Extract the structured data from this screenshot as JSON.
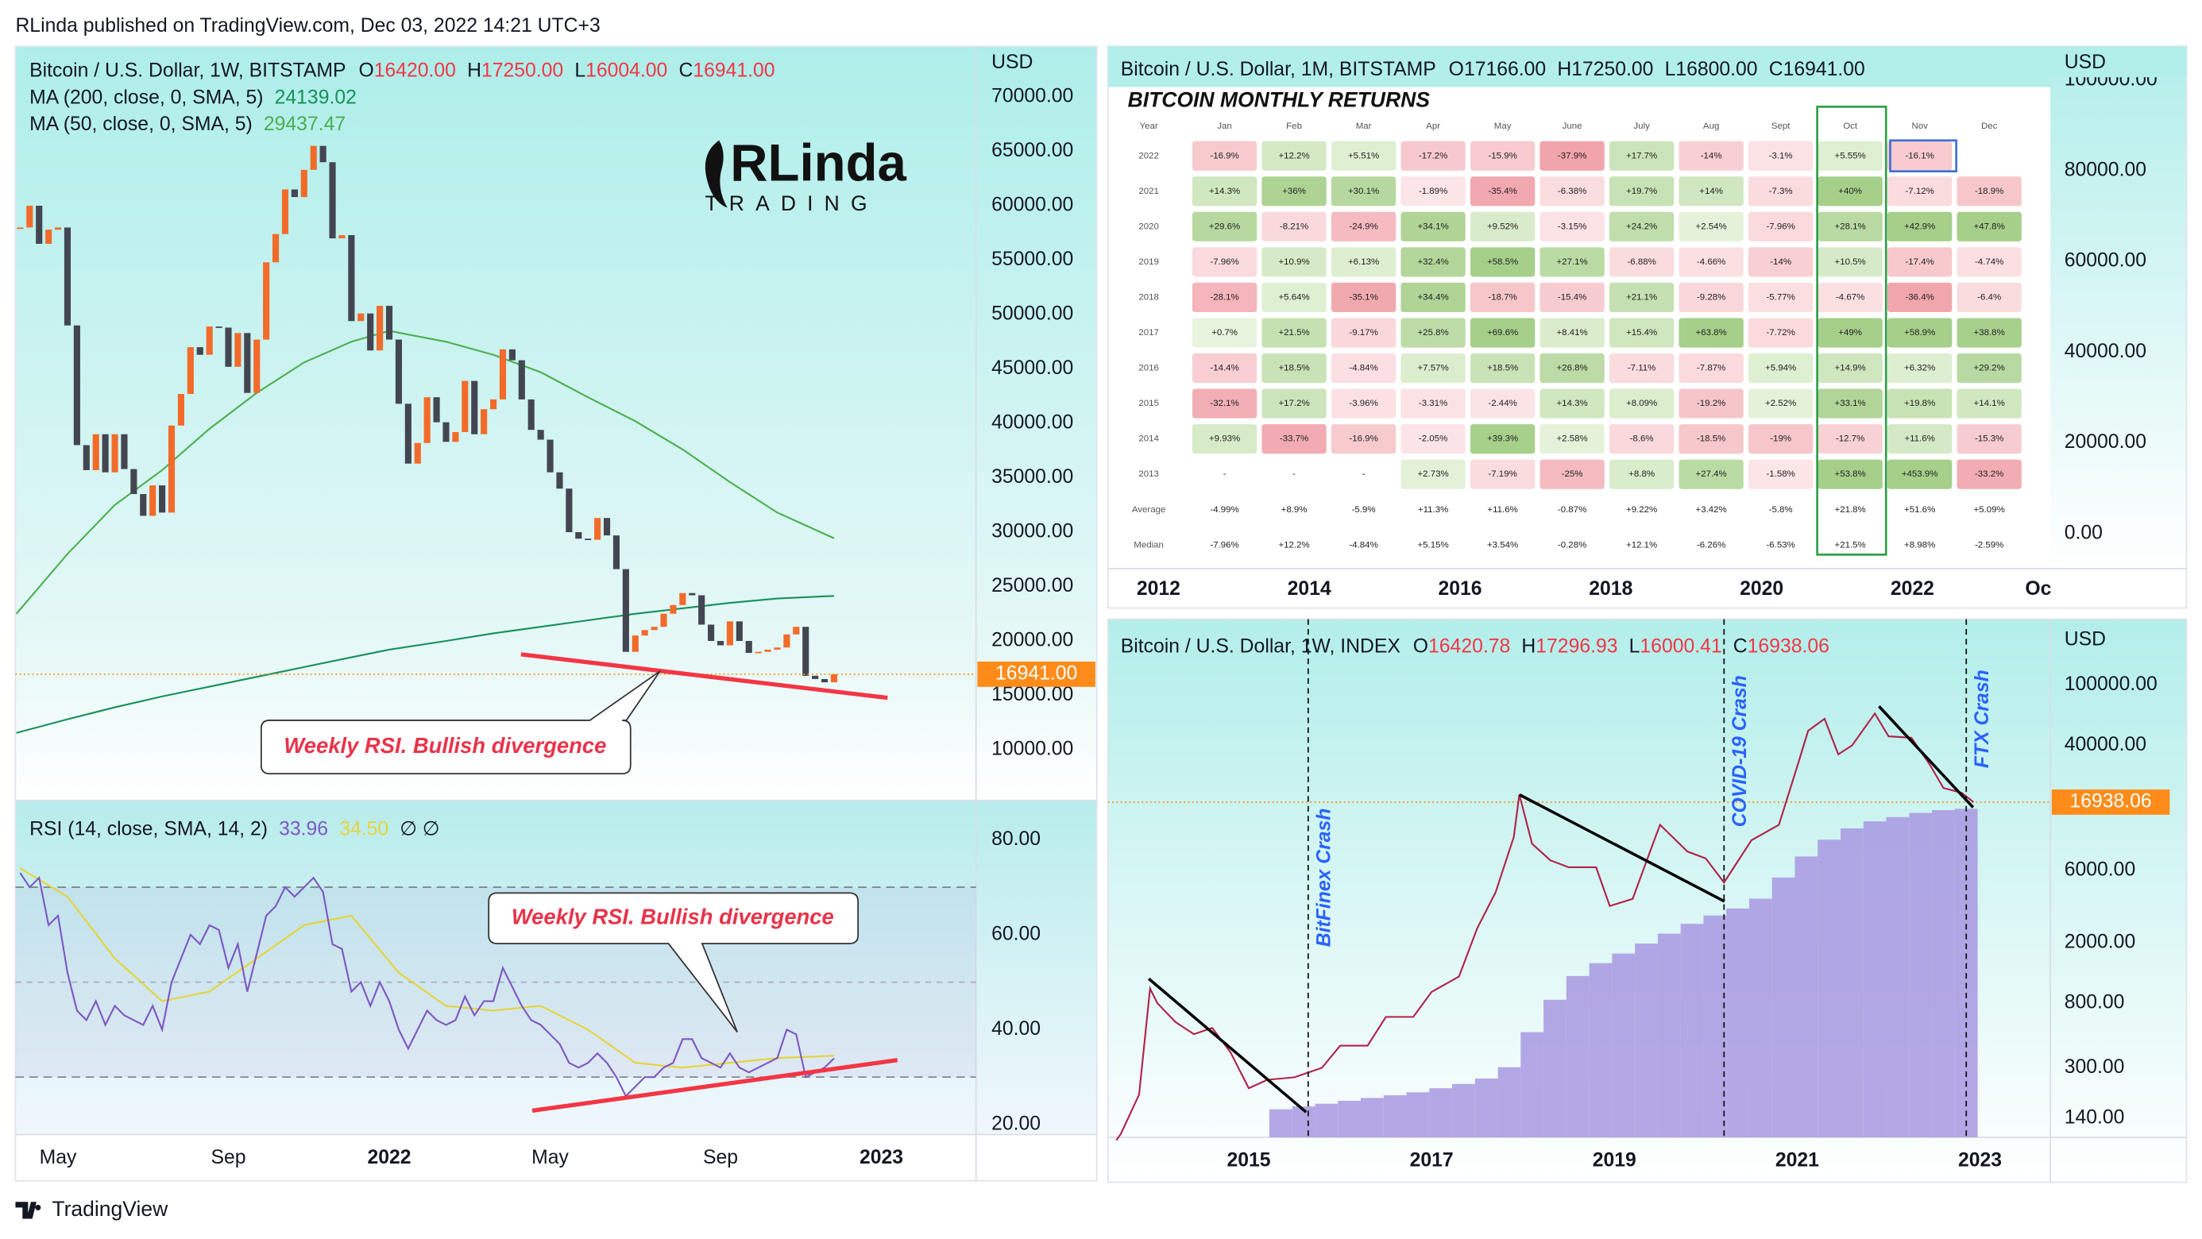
{
  "header": {
    "publisher": "RLinda published on TradingView.com, Dec 03, 2022 14:21 UTC+3"
  },
  "logo": {
    "name": "RLinda",
    "tagline": "TRADING"
  },
  "footer": {
    "brand": "TradingView"
  },
  "chart_data": [
    {
      "type": "candlestick",
      "title": "Bitcoin / U.S. Dollar, 1W, BITSTAMP",
      "ohlc": [
        {
          "label": "O",
          "value": "16420.00"
        },
        {
          "label": "H",
          "value": "17250.00"
        },
        {
          "label": "L",
          "value": "16004.00"
        },
        {
          "label": "C",
          "value": "16941.00"
        }
      ],
      "axis_unit": "USD",
      "up_color": "#f26b2a",
      "down_color": "#434651",
      "xlim": [
        -0.5,
        101
      ],
      "ylim": [
        5350,
        74650
      ],
      "xticks": [
        {
          "value": 4,
          "label": "May"
        },
        {
          "value": 22,
          "label": "Sep"
        },
        {
          "value": 39,
          "label": "2022"
        },
        {
          "value": 56,
          "label": "May"
        },
        {
          "value": 74,
          "label": "Sep"
        },
        {
          "value": 91,
          "label": "2023"
        }
      ],
      "yticks": [
        {
          "value": 10000,
          "label": "10000.00"
        },
        {
          "value": 15000,
          "label": "15000.00"
        },
        {
          "value": 20000,
          "label": "20000.00"
        },
        {
          "value": 25000,
          "label": "25000.00"
        },
        {
          "value": 30000,
          "label": "30000.00"
        },
        {
          "value": 35000,
          "label": "35000.00"
        },
        {
          "value": 40000,
          "label": "40000.00"
        },
        {
          "value": 45000,
          "label": "45000.00"
        },
        {
          "value": 50000,
          "label": "50000.00"
        },
        {
          "value": 55000,
          "label": "55000.00"
        },
        {
          "value": 60000,
          "label": "60000.00"
        },
        {
          "value": 65000,
          "label": "65000.00"
        },
        {
          "value": 70000,
          "label": "70000.00"
        }
      ],
      "x": [
        0,
        1,
        2,
        3,
        4,
        5,
        6,
        7,
        8,
        9,
        10,
        11,
        12,
        13,
        14,
        15,
        16,
        17,
        18,
        19,
        20,
        21,
        22,
        23,
        24,
        25,
        26,
        27,
        28,
        29,
        30,
        31,
        32,
        33,
        34,
        35,
        36,
        37,
        38,
        39,
        40,
        41,
        42,
        43,
        44,
        45,
        46,
        47,
        48,
        49,
        50,
        51,
        52,
        53,
        54,
        55,
        56,
        57,
        58,
        59,
        60,
        61,
        62,
        63,
        64,
        65,
        66,
        67,
        68,
        69,
        70,
        71,
        72,
        73,
        74,
        75,
        76,
        77,
        78,
        79,
        80,
        81,
        82,
        83,
        84,
        85,
        86
      ],
      "candles": {
        "values": [
          58000,
          60000,
          56500,
          57800,
          58000,
          49000,
          38000,
          35700,
          39000,
          35500,
          39000,
          35800,
          33500,
          31500,
          34300,
          31800,
          39800,
          42700,
          47000,
          46300,
          48900,
          48800,
          45200,
          48300,
          42800,
          47700,
          54800,
          57400,
          61500,
          60800,
          63300,
          65500,
          64000,
          57000,
          57300,
          49400,
          50100,
          46700,
          50800,
          47700,
          41800,
          36300,
          38200,
          42400,
          40100,
          38300,
          39200,
          43900,
          39000,
          41300,
          42200,
          46800,
          45800,
          42200,
          39400,
          38500,
          35500,
          34000,
          30000,
          29400,
          29300,
          31300,
          29700,
          26600,
          19000,
          20500,
          21000,
          21300,
          22500,
          23300,
          24400,
          24200,
          21500,
          20000,
          19600,
          21800,
          20000,
          18900,
          19000,
          19200,
          19400,
          20600,
          21300,
          16800,
          16500,
          16200,
          16941
        ]
      },
      "last_price_label": "16941.00",
      "last_price_color": "#ff8c1a",
      "series": [
        {
          "name": "MA (200, close, 0, SMA, 5)",
          "legend_value": "24139.02",
          "color": "#17905a",
          "x": [
            -0.4,
            5,
            10,
            15,
            20,
            25,
            30,
            35,
            39,
            45,
            50,
            55,
            60,
            65,
            70,
            75,
            80,
            86
          ],
          "values": [
            11550,
            12800,
            13900,
            14900,
            15800,
            16700,
            17600,
            18500,
            19200,
            20000,
            20700,
            21300,
            21900,
            22500,
            23000,
            23500,
            23900,
            24139
          ]
        },
        {
          "name": "MA (50, close, 0, SMA, 5)",
          "legend_value": "29437.47",
          "color": "#4caf50",
          "x": [
            -0.4,
            5,
            10,
            15,
            20,
            25,
            30,
            35,
            39,
            45,
            50,
            55,
            60,
            65,
            70,
            75,
            80,
            86
          ],
          "values": [
            22500,
            28000,
            32500,
            35700,
            39500,
            42800,
            45600,
            47500,
            48500,
            47500,
            46300,
            44700,
            42400,
            40200,
            37600,
            34600,
            31800,
            29437
          ]
        }
      ],
      "annotation": "Weekly RSI. Bullish divergence",
      "rsi": {
        "name": "RSI (14, close, SMA, 14, 2)",
        "legend_value": "33.96",
        "color": "#7e57c2",
        "signal": {
          "legend_value": "34.50",
          "color": "#e6d43a",
          "x": [
            0,
            5,
            10,
            15,
            20,
            25,
            30,
            35,
            40,
            45,
            50,
            55,
            60,
            65,
            70,
            75,
            80,
            86
          ],
          "values": [
            74,
            68,
            55,
            46,
            48,
            55,
            62,
            64,
            52,
            45,
            44,
            45,
            40,
            33,
            32,
            33,
            34,
            34.5
          ]
        },
        "extra": "∅ ∅",
        "ylim": [
          17.9,
          88.3
        ],
        "yticks": [
          {
            "value": 20,
            "label": "20.00"
          },
          {
            "value": 40,
            "label": "40.00"
          },
          {
            "value": 60,
            "label": "60.00"
          },
          {
            "value": 80,
            "label": "80.00"
          }
        ],
        "levels": [
          30,
          50,
          70
        ],
        "values": [
          73,
          70,
          72,
          62,
          64,
          52,
          44,
          42,
          46,
          41,
          45,
          43,
          42,
          41,
          45,
          40,
          50,
          55,
          60,
          58,
          62,
          61,
          53,
          58,
          48,
          56,
          64,
          66,
          70,
          68,
          70,
          72,
          69,
          58,
          57,
          48,
          50,
          45,
          50,
          46,
          40,
          36,
          40,
          44,
          42,
          41,
          42,
          47,
          43,
          46,
          46,
          53,
          49,
          45,
          42,
          41,
          39,
          37,
          33,
          32,
          33,
          35,
          33,
          30,
          26,
          28,
          30,
          30,
          32,
          33,
          38,
          38,
          34,
          33,
          32,
          35,
          32,
          31,
          32,
          33,
          34,
          40,
          39,
          30,
          31,
          32,
          33.96
        ],
        "annotation": "Weekly RSI. Bullish divergence"
      }
    },
    {
      "type": "returns-table",
      "title": "Bitcoin / U.S. Dollar, 1M, BITSTAMP",
      "ohlc": [
        {
          "label": "O",
          "value": "17166.00"
        },
        {
          "label": "H",
          "value": "17250.00"
        },
        {
          "label": "L",
          "value": "16800.00"
        },
        {
          "label": "C",
          "value": "16941.00"
        }
      ],
      "axis_unit": "USD",
      "xlim": [
        2011.33,
        2023.83
      ],
      "ylim": [
        -7750,
        107440
      ],
      "xticks": [
        2012,
        2014,
        2016,
        2018,
        2020,
        2022,
        {
          "value": 2023.67,
          "label": "Oc"
        }
      ],
      "yticks": [
        {
          "value": 0,
          "label": "0.00"
        },
        {
          "value": 20000,
          "label": "20000.00"
        },
        {
          "value": 40000,
          "label": "40000.00"
        },
        {
          "value": 60000,
          "label": "60000.00"
        },
        {
          "value": 80000,
          "label": "80000.00"
        },
        {
          "value": 100000,
          "label": "100000.00"
        }
      ]
    },
    {
      "type": "line",
      "log_y": true,
      "title": "Bitcoin / U.S. Dollar, 1W, INDEX",
      "ohlc": [
        {
          "label": "O",
          "value": "16420.78"
        },
        {
          "label": "H",
          "value": "17296.93"
        },
        {
          "label": "L",
          "value": "16000.41"
        },
        {
          "label": "C",
          "value": "16938.06"
        }
      ],
      "axis_unit": "USD",
      "color": "#b0224a",
      "xlim": [
        2013.46,
        2023.77
      ],
      "ylim": [
        104.5,
        272000
      ],
      "xticks": [
        2015,
        2017,
        2019,
        2021,
        2023
      ],
      "yticks": [
        {
          "value": 140,
          "label": "140.00"
        },
        {
          "value": 300,
          "label": "300.00"
        },
        {
          "value": 800,
          "label": "800.00"
        },
        {
          "value": 2000,
          "label": "2000.00"
        },
        {
          "value": 6000,
          "label": "6000.00"
        },
        {
          "value": 40000,
          "label": "40000.00"
        },
        {
          "value": 100000,
          "label": "100000.00"
        }
      ],
      "x": [
        2013.55,
        2013.6,
        2013.8,
        2013.92,
        2014.0,
        2014.2,
        2014.4,
        2014.6,
        2014.8,
        2015.0,
        2015.2,
        2015.5,
        2015.8,
        2016.0,
        2016.3,
        2016.5,
        2016.8,
        2017.0,
        2017.3,
        2017.5,
        2017.7,
        2017.9,
        2017.96,
        2018.1,
        2018.3,
        2018.5,
        2018.8,
        2018.95,
        2019.2,
        2019.45,
        2019.5,
        2019.8,
        2020.0,
        2020.2,
        2020.5,
        2020.8,
        2021.0,
        2021.12,
        2021.3,
        2021.45,
        2021.6,
        2021.85,
        2022.0,
        2022.25,
        2022.45,
        2022.6,
        2022.8,
        2022.93
      ],
      "values": [
        100,
        110,
        200,
        1000,
        800,
        600,
        500,
        550,
        380,
        220,
        250,
        260,
        300,
        420,
        420,
        650,
        650,
        950,
        1200,
        2500,
        4300,
        10000,
        19000,
        9000,
        7000,
        6300,
        6300,
        3500,
        3900,
        10000,
        12000,
        8000,
        7200,
        5000,
        9500,
        12000,
        29000,
        50000,
        60000,
        35000,
        40000,
        65000,
        46000,
        45000,
        30000,
        21000,
        19500,
        16938.06
      ],
      "histogram": {
        "color": "#a898e2",
        "x": [
          2015.35,
          2015.6,
          2015.85,
          2016.1,
          2016.35,
          2016.6,
          2016.85,
          2017.1,
          2017.35,
          2017.6,
          2017.85,
          2018.1,
          2018.35,
          2018.6,
          2018.85,
          2019.1,
          2019.35,
          2019.6,
          2019.85,
          2020.1,
          2020.35,
          2020.6,
          2020.85,
          2021.1,
          2021.35,
          2021.6,
          2021.85,
          2022.1,
          2022.35,
          2022.6,
          2022.85
        ],
        "values": [
          160,
          167,
          174,
          182,
          190,
          198,
          207,
          220,
          235,
          255,
          303,
          516,
          843,
          1210,
          1470,
          1700,
          1980,
          2300,
          2670,
          3030,
          3370,
          3910,
          5390,
          7420,
          9570,
          11370,
          12650,
          13490,
          14370,
          15000,
          15300
        ]
      },
      "last_price_label": "16938.06",
      "last_price_color": "#ff8c1a",
      "events": [
        {
          "label": "BitFinex Crash",
          "x": 2015.65
        },
        {
          "label": "COVID-19 Crash",
          "x": 2020.2
        },
        {
          "label": "FTX Crash",
          "x": 2022.85
        }
      ]
    }
  ],
  "returns_table": {
    "title": "BITCOIN MONTHLY RETURNS",
    "header": [
      "Year",
      "Jan",
      "Feb",
      "Mar",
      "Apr",
      "May",
      "June",
      "July",
      "Aug",
      "Sept",
      "Oct",
      "Nov",
      "Dec"
    ],
    "rows": [
      [
        "2022",
        "-16.9%",
        "+12.2%",
        "+5.51%",
        "-17.2%",
        "-15.9%",
        "-37.9%",
        "+17.7%",
        "-14%",
        "-3.1%",
        "+5.55%",
        "-16.1%"
      ],
      [
        "2021",
        "+14.3%",
        "+36%",
        "+30.1%",
        "-1.89%",
        "-35.4%",
        "-6.38%",
        "+19.7%",
        "+14%",
        "-7.3%",
        "+40%",
        "-7.12%",
        "-18.9%"
      ],
      [
        "2020",
        "+29.6%",
        "-8.21%",
        "-24.9%",
        "+34.1%",
        "+9.52%",
        "-3.15%",
        "+24.2%",
        "+2.54%",
        "-7.96%",
        "+28.1%",
        "+42.9%",
        "+47.8%"
      ],
      [
        "2019",
        "-7.96%",
        "+10.9%",
        "+6.13%",
        "+32.4%",
        "+58.5%",
        "+27.1%",
        "-6.88%",
        "-4.66%",
        "-14%",
        "+10.5%",
        "-17.4%",
        "-4.74%"
      ],
      [
        "2018",
        "-28.1%",
        "+5.64%",
        "-35.1%",
        "+34.4%",
        "-18.7%",
        "-15.4%",
        "+21.1%",
        "-9.28%",
        "-5.77%",
        "-4.67%",
        "-36.4%",
        "-6.4%"
      ],
      [
        "2017",
        "+0.7%",
        "+21.5%",
        "-9.17%",
        "+25.8%",
        "+69.6%",
        "+8.41%",
        "+15.4%",
        "+63.8%",
        "-7.72%",
        "+49%",
        "+58.9%",
        "+38.8%"
      ],
      [
        "2016",
        "-14.4%",
        "+18.5%",
        "-4.84%",
        "+7.57%",
        "+18.5%",
        "+26.8%",
        "-7.11%",
        "-7.87%",
        "+5.94%",
        "+14.9%",
        "+6.32%",
        "+29.2%"
      ],
      [
        "2015",
        "-32.1%",
        "+17.2%",
        "-3.96%",
        "-3.31%",
        "-2.44%",
        "+14.3%",
        "+8.09%",
        "-19.2%",
        "+2.52%",
        "+33.1%",
        "+19.8%",
        "+14.1%"
      ],
      [
        "2014",
        "+9.93%",
        "-33.7%",
        "-16.9%",
        "-2.05%",
        "+39.3%",
        "+2.58%",
        "-8.6%",
        "-18.5%",
        "-19%",
        "-12.7%",
        "+11.6%",
        "-15.3%"
      ],
      [
        "2013",
        "-",
        "-",
        "-",
        "+2.73%",
        "-7.19%",
        "-25%",
        "+8.8%",
        "+27.4%",
        "-1.58%",
        "+53.8%",
        "+453.9%",
        "-33.2%"
      ],
      [
        "Average",
        "-4.99%",
        "+8.9%",
        "-5.9%",
        "+11.3%",
        "+11.6%",
        "-0.87%",
        "+9.22%",
        "+3.42%",
        "-5.8%",
        "+21.8%",
        "+51.6%",
        "+5.09%"
      ],
      [
        "Median",
        "-7.96%",
        "+12.2%",
        "-4.84%",
        "+5.15%",
        "+3.54%",
        "-0.28%",
        "+12.1%",
        "-6.26%",
        "-6.53%",
        "+21.5%",
        "+8.98%",
        "-2.59%"
      ]
    ]
  }
}
